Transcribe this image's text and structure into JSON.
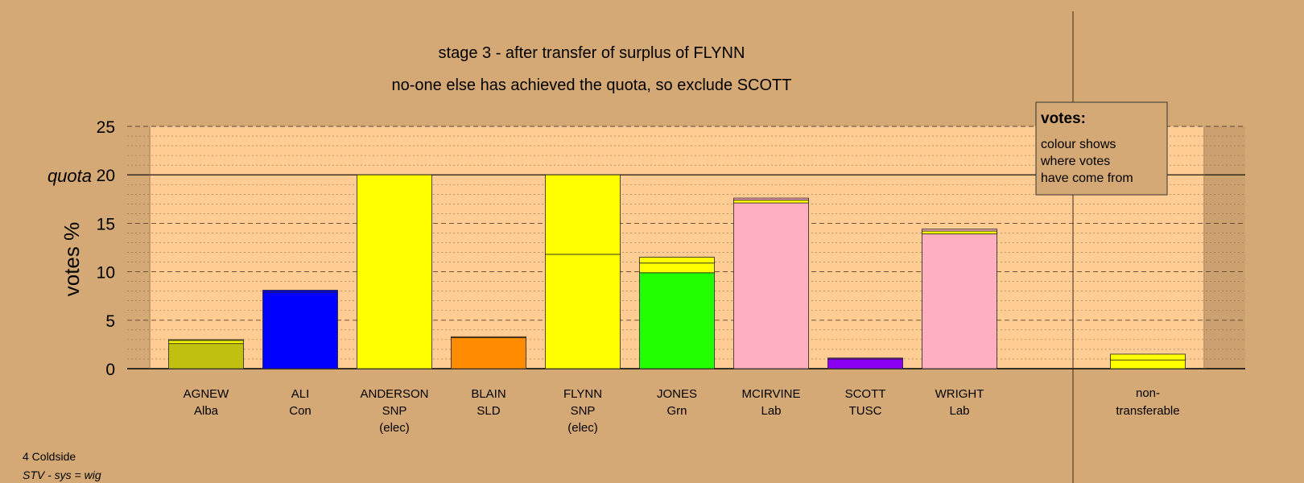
{
  "chart_data": {
    "type": "bar",
    "stacked": true,
    "title": "stage 3 - after transfer of surplus of FLYNN",
    "subtitle": "no-one else has achieved the quota, so exclude SCOTT",
    "ylabel": "votes %",
    "ylim": [
      0,
      25
    ],
    "yticks": [
      0,
      5,
      10,
      15,
      20,
      25
    ],
    "quota": 20,
    "quota_label": "quota",
    "grid": true,
    "legend": {
      "title": "votes:",
      "lines": [
        "colour shows",
        "where votes",
        "have come from"
      ],
      "placement": "top-right"
    },
    "categories": [
      {
        "name": "AGNEW",
        "party": "Alba",
        "note": "",
        "segments": [
          {
            "value": 2.6,
            "color": "#c0c010"
          },
          {
            "value": 0.3,
            "color": "#ffff00"
          },
          {
            "value": 0.1,
            "color": "#c0c010"
          }
        ]
      },
      {
        "name": "ALI",
        "party": "Con",
        "note": "",
        "segments": [
          {
            "value": 7.9,
            "color": "#0000ff"
          },
          {
            "value": 0.2,
            "color": "#0000ff"
          }
        ]
      },
      {
        "name": "ANDERSON",
        "party": "SNP",
        "note": "(elec)",
        "segments": [
          {
            "value": 20.0,
            "color": "#ffff00"
          }
        ]
      },
      {
        "name": "BLAIN",
        "party": "SLD",
        "note": "",
        "segments": [
          {
            "value": 3.2,
            "color": "#ff8c00"
          },
          {
            "value": 0.1,
            "color": "#ff8c00"
          }
        ]
      },
      {
        "name": "FLYNN",
        "party": "SNP",
        "note": "(elec)",
        "segments": [
          {
            "value": 11.8,
            "color": "#ffff00"
          },
          {
            "value": 8.2,
            "color": "#ffff00"
          }
        ]
      },
      {
        "name": "JONES",
        "party": "Grn",
        "note": "",
        "segments": [
          {
            "value": 9.9,
            "color": "#22ff00"
          },
          {
            "value": 1.0,
            "color": "#ffff00"
          },
          {
            "value": 0.6,
            "color": "#ffff00"
          }
        ]
      },
      {
        "name": "MCIRVINE",
        "party": "Lab",
        "note": "",
        "segments": [
          {
            "value": 17.1,
            "color": "#ffb0c0"
          },
          {
            "value": 0.3,
            "color": "#ffff00"
          },
          {
            "value": 0.2,
            "color": "#ffb0c0"
          }
        ]
      },
      {
        "name": "SCOTT",
        "party": "TUSC",
        "note": "",
        "segments": [
          {
            "value": 1.0,
            "color": "#8a00f0"
          },
          {
            "value": 0.1,
            "color": "#8a00f0"
          }
        ]
      },
      {
        "name": "WRIGHT",
        "party": "Lab",
        "note": "",
        "segments": [
          {
            "value": 13.9,
            "color": "#ffb0c0"
          },
          {
            "value": 0.3,
            "color": "#ffff00"
          },
          {
            "value": 0.2,
            "color": "#ffb0c0"
          }
        ]
      }
    ],
    "nontransferable": {
      "line1": "non-",
      "line2": "transferable",
      "segments": [
        {
          "value": 0.9,
          "color": "#ffff00"
        },
        {
          "value": 0.6,
          "color": "#ffff00"
        }
      ]
    }
  },
  "footer": {
    "ward": "4 Coldside",
    "system": "STV - sys = wig"
  }
}
